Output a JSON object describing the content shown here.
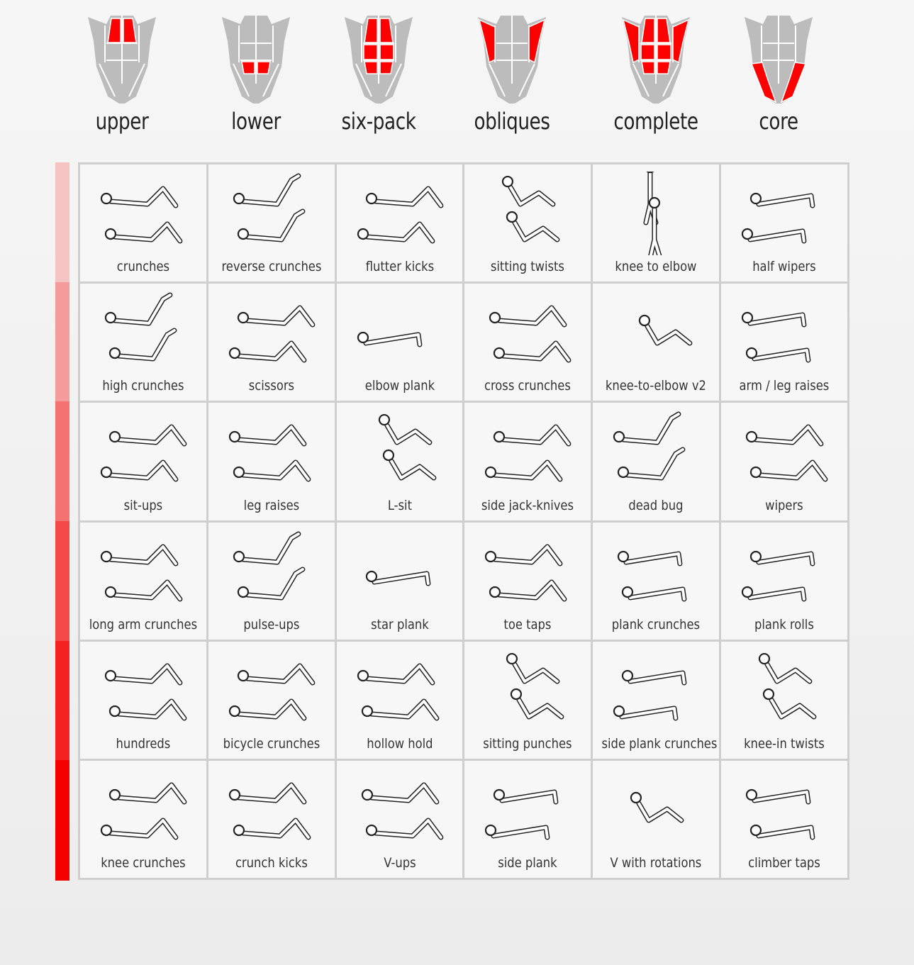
{
  "columns": [
    {
      "title": "upper",
      "highlight": [
        "upper"
      ]
    },
    {
      "title": "lower",
      "highlight": [
        "lower"
      ]
    },
    {
      "title": "six-pack",
      "highlight": [
        "upper",
        "middle",
        "lower"
      ]
    },
    {
      "title": "obliques",
      "highlight": [
        "obliques"
      ]
    },
    {
      "title": "complete",
      "highlight": [
        "upper",
        "middle",
        "lower",
        "obliques"
      ]
    },
    {
      "title": "core",
      "highlight": [
        "core"
      ]
    }
  ],
  "colors": {
    "highlight": "#ff0000",
    "muscle": "#bcbcbc",
    "outline": "#ffffff",
    "difficulty": [
      "#f6c3c3",
      "#f69b9b",
      "#f57272",
      "#f54848",
      "#f52222",
      "#f50000"
    ]
  },
  "rows": [
    [
      "crunches",
      "reverse crunches",
      "flutter kicks",
      "sitting twists",
      "knee to elbow",
      "half wipers"
    ],
    [
      "high crunches",
      "scissors",
      "elbow plank",
      "cross crunches",
      "knee-to-elbow v2",
      "arm / leg raises"
    ],
    [
      "sit-ups",
      "leg raises",
      "L-sit",
      "side jack-knives",
      "dead bug",
      "wipers"
    ],
    [
      "long arm crunches",
      "pulse-ups",
      "star plank",
      "toe taps",
      "plank crunches",
      "plank rolls"
    ],
    [
      "hundreds",
      "bicycle crunches",
      "hollow hold",
      "sitting punches",
      "side plank crunches",
      "knee-in twists"
    ],
    [
      "knee crunches",
      "crunch kicks",
      "V-ups",
      "side plank",
      "V  with rotations",
      "climber taps"
    ]
  ]
}
